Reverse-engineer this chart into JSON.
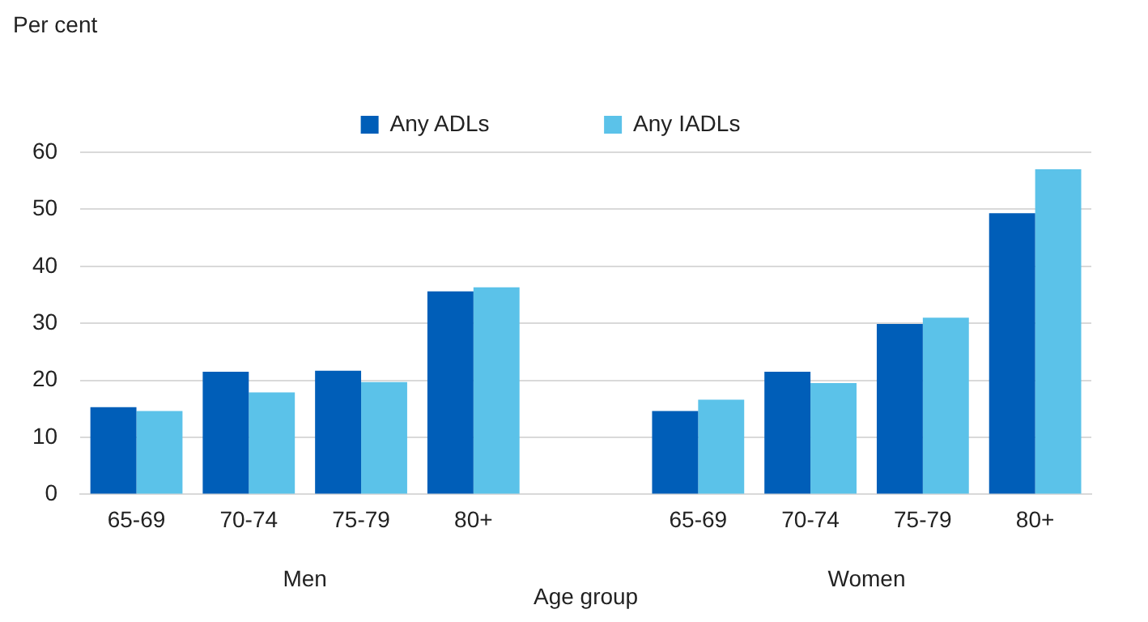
{
  "chart_data": {
    "type": "bar",
    "ylabel": "Per cent",
    "xlabel": "Age group",
    "categories": [
      "65-69",
      "70-74",
      "75-79",
      "80+",
      null,
      "65-69",
      "70-74",
      "75-79",
      "80+"
    ],
    "series": [
      {
        "name": "Any ADLs",
        "color": "#005eb8",
        "values": [
          15.3,
          21.5,
          21.7,
          35.6,
          null,
          14.6,
          21.5,
          29.9,
          49.3
        ]
      },
      {
        "name": "Any IADLs",
        "color": "#5bc2e9",
        "values": [
          14.6,
          17.9,
          19.7,
          36.3,
          null,
          16.6,
          19.5,
          31.0,
          57.0
        ]
      }
    ],
    "annotations": [
      "Men",
      "Women"
    ],
    "ylim": [
      0,
      60
    ],
    "yticks": [
      0,
      10,
      20,
      30,
      40,
      50,
      60
    ],
    "grid": "y",
    "legend": "top"
  }
}
